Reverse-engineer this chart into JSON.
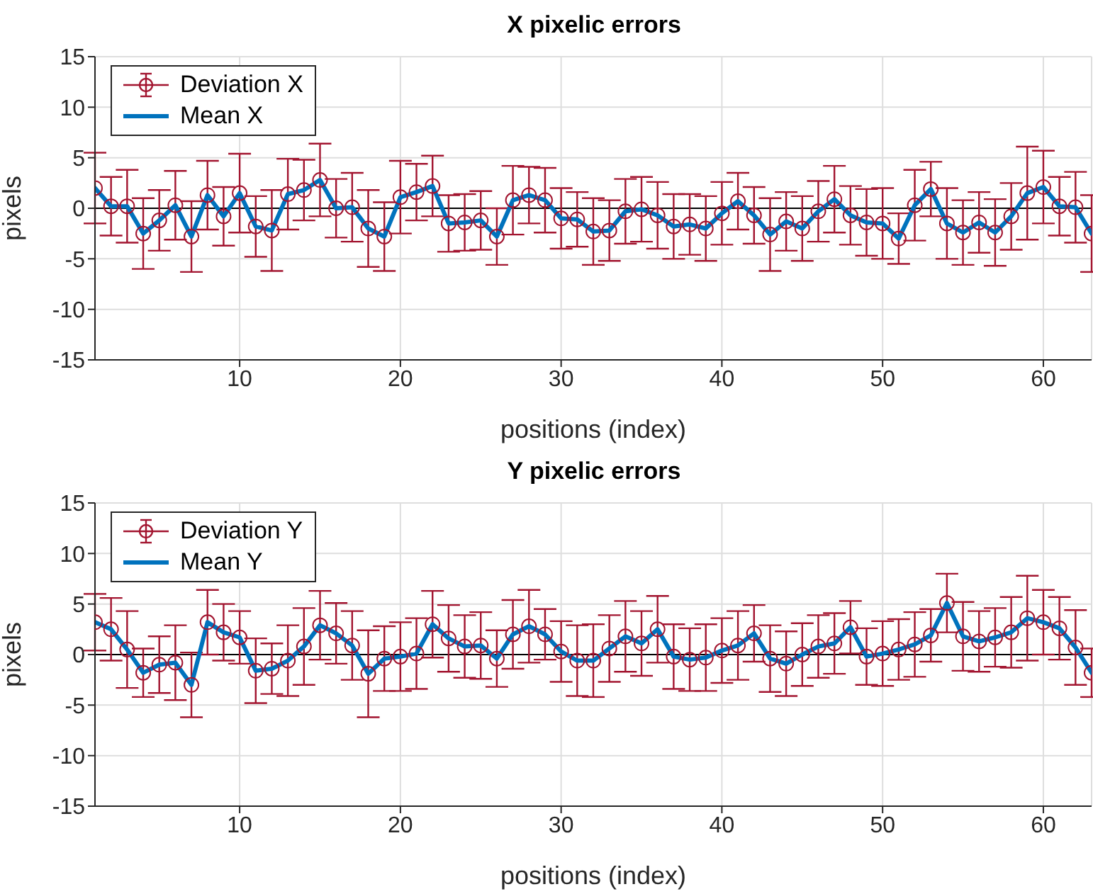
{
  "chart_data": [
    {
      "type": "line",
      "title": "X pixelic errors",
      "xlabel": "positions (index)",
      "ylabel": "pixels",
      "x": [
        1,
        2,
        3,
        4,
        5,
        6,
        7,
        8,
        9,
        10,
        11,
        12,
        13,
        14,
        15,
        16,
        17,
        18,
        19,
        20,
        21,
        22,
        23,
        24,
        25,
        26,
        27,
        28,
        29,
        30,
        31,
        32,
        33,
        34,
        35,
        36,
        37,
        38,
        39,
        40,
        41,
        42,
        43,
        44,
        45,
        46,
        47,
        48,
        49,
        50,
        51,
        52,
        53,
        54,
        55,
        56,
        57,
        58,
        59,
        60,
        61,
        62,
        63
      ],
      "xlim": [
        1,
        63
      ],
      "xticks": [
        10,
        20,
        30,
        40,
        50,
        60
      ],
      "ylim": [
        -15,
        15
      ],
      "yticks": [
        -15,
        -10,
        -5,
        0,
        5,
        10,
        15
      ],
      "grid": true,
      "legend": "top left",
      "ref_lines": [
        {
          "axis": "y",
          "value": 0,
          "color": "#000000"
        }
      ],
      "series": [
        {
          "name": "Deviation X",
          "type": "scatter",
          "color": "#a2142f",
          "marker": "circle",
          "values": [
            2,
            0.2,
            0.2,
            -2.5,
            -1.2,
            0.3,
            -2.8,
            1.3,
            -0.8,
            1.5,
            -1.8,
            -2.2,
            1.4,
            1.8,
            2.8,
            0,
            0.1,
            -2,
            -2.8,
            1.1,
            1.6,
            2.2,
            -1.5,
            -1.4,
            -1.2,
            -2.8,
            0.8,
            1.3,
            0.8,
            -1,
            -1.1,
            -2.3,
            -2.2,
            -0.3,
            -0.1,
            -0.7,
            -1.8,
            -1.6,
            -2,
            -0.5,
            0.7,
            -0.7,
            -2.6,
            -1.3,
            -2,
            -0.3,
            0.9,
            -0.7,
            -1.4,
            -1.5,
            -3,
            0.3,
            1.9,
            -1.5,
            -2.4,
            -1.4,
            -2.4,
            -0.8,
            1.5,
            2.1,
            0.2,
            0.1,
            -2.5
          ],
          "errors": [
            3.5,
            2.9,
            3.6,
            3.5,
            3,
            3.4,
            3.5,
            3.4,
            2.9,
            3.9,
            3,
            4,
            3.5,
            3,
            3.6,
            2.9,
            3.4,
            3.8,
            3.4,
            3.6,
            2.8,
            3,
            2.8,
            2.8,
            2.9,
            2.8,
            3.4,
            2.8,
            3.2,
            3,
            2.7,
            3.3,
            3,
            3.2,
            3.2,
            3.3,
            3.2,
            3,
            3.2,
            3.1,
            2.8,
            2.8,
            3.6,
            2.9,
            3.2,
            3,
            3.3,
            2.9,
            3.3,
            3.5,
            2.5,
            3.5,
            2.7,
            3.5,
            3.2,
            3,
            3.3,
            3.3,
            4.6,
            3.6,
            2.9,
            3.5,
            3.8
          ]
        },
        {
          "name": "Mean X",
          "color": "#0072bd",
          "marker": "none",
          "line_style": "solid",
          "values": [
            2,
            0.2,
            0.2,
            -2.5,
            -1.2,
            0.3,
            -2.8,
            1.3,
            -0.8,
            1.5,
            -1.8,
            -2.2,
            1.4,
            1.8,
            2.8,
            0,
            0.1,
            -2,
            -2.8,
            1.1,
            1.6,
            2.2,
            -1.5,
            -1.4,
            -1.2,
            -2.8,
            0.8,
            1.3,
            0.8,
            -1,
            -1.1,
            -2.3,
            -2.2,
            -0.3,
            -0.1,
            -0.7,
            -1.8,
            -1.6,
            -2,
            -0.5,
            0.7,
            -0.7,
            -2.6,
            -1.3,
            -2,
            -0.3,
            0.9,
            -0.7,
            -1.4,
            -1.5,
            -3,
            0.3,
            1.9,
            -1.5,
            -2.4,
            -1.4,
            -2.4,
            -0.8,
            1.5,
            2.1,
            0.2,
            0.1,
            -2.5
          ]
        }
      ]
    },
    {
      "type": "line",
      "title": "Y pixelic errors",
      "xlabel": "positions (index)",
      "ylabel": "pixels",
      "x": [
        1,
        2,
        3,
        4,
        5,
        6,
        7,
        8,
        9,
        10,
        11,
        12,
        13,
        14,
        15,
        16,
        17,
        18,
        19,
        20,
        21,
        22,
        23,
        24,
        25,
        26,
        27,
        28,
        29,
        30,
        31,
        32,
        33,
        34,
        35,
        36,
        37,
        38,
        39,
        40,
        41,
        42,
        43,
        44,
        45,
        46,
        47,
        48,
        49,
        50,
        51,
        52,
        53,
        54,
        55,
        56,
        57,
        58,
        59,
        60,
        61,
        62,
        63
      ],
      "xlim": [
        1,
        63
      ],
      "xticks": [
        10,
        20,
        30,
        40,
        50,
        60
      ],
      "ylim": [
        -15,
        15
      ],
      "yticks": [
        -15,
        -10,
        -5,
        0,
        5,
        10,
        15
      ],
      "grid": true,
      "legend": "top left",
      "ref_lines": [
        {
          "axis": "y",
          "value": 0,
          "color": "#000000"
        }
      ],
      "series": [
        {
          "name": "Deviation Y",
          "type": "scatter",
          "color": "#a2142f",
          "marker": "circle",
          "values": [
            3.2,
            2.5,
            0.5,
            -1.8,
            -1,
            -0.8,
            -3,
            3.2,
            2.2,
            1.7,
            -1.6,
            -1.4,
            -0.6,
            0.8,
            2.9,
            2.1,
            0.9,
            -1.9,
            -0.4,
            -0.2,
            0.1,
            3,
            1.6,
            0.8,
            0.9,
            -0.4,
            2,
            2.8,
            2,
            0.3,
            -0.6,
            -0.6,
            0.6,
            1.8,
            1.1,
            2.5,
            -0.2,
            -0.5,
            -0.3,
            0.4,
            0.9,
            2.1,
            -0.4,
            -0.9,
            0,
            0.8,
            1.1,
            2.7,
            -0.2,
            0.1,
            0.5,
            1,
            1.9,
            5.1,
            1.8,
            1.3,
            1.7,
            2.2,
            3.6,
            3.2,
            2.6,
            0.7,
            -1.8
          ],
          "errors": [
            2.8,
            3.1,
            3.8,
            2.4,
            2.8,
            3.7,
            3.2,
            3.2,
            2.8,
            2.6,
            3.2,
            2.5,
            3.5,
            3.8,
            3.4,
            3,
            3.4,
            4.3,
            3.2,
            3.4,
            3.5,
            3.3,
            3.3,
            3.1,
            3.3,
            2.8,
            3.4,
            3.6,
            2.5,
            3,
            3.5,
            3.6,
            3.3,
            3.5,
            3.2,
            3.3,
            3.2,
            3.1,
            3.3,
            3.2,
            3.4,
            2.8,
            3.3,
            3.2,
            3.1,
            3.1,
            3,
            2.6,
            2.8,
            3.2,
            3,
            3.2,
            2.6,
            2.9,
            3.4,
            3,
            2.9,
            3.5,
            4.2,
            3.2,
            3.1,
            3.7,
            2.4
          ]
        },
        {
          "name": "Mean Y",
          "color": "#0072bd",
          "marker": "none",
          "line_style": "solid",
          "values": [
            3.2,
            2.5,
            0.5,
            -1.8,
            -1,
            -0.8,
            -3,
            3.2,
            2.2,
            1.7,
            -1.6,
            -1.4,
            -0.6,
            0.8,
            2.9,
            2.1,
            0.9,
            -1.9,
            -0.4,
            -0.2,
            0.1,
            3,
            1.6,
            0.8,
            0.9,
            -0.4,
            2,
            2.8,
            2,
            0.3,
            -0.6,
            -0.6,
            0.6,
            1.8,
            1.1,
            2.5,
            -0.2,
            -0.5,
            -0.3,
            0.4,
            0.9,
            2.1,
            -0.4,
            -0.9,
            0,
            0.8,
            1.1,
            2.7,
            -0.2,
            0.1,
            0.5,
            1,
            1.9,
            5.1,
            1.8,
            1.3,
            1.7,
            2.2,
            3.6,
            3.2,
            2.6,
            0.7,
            -1.8
          ]
        }
      ]
    }
  ]
}
